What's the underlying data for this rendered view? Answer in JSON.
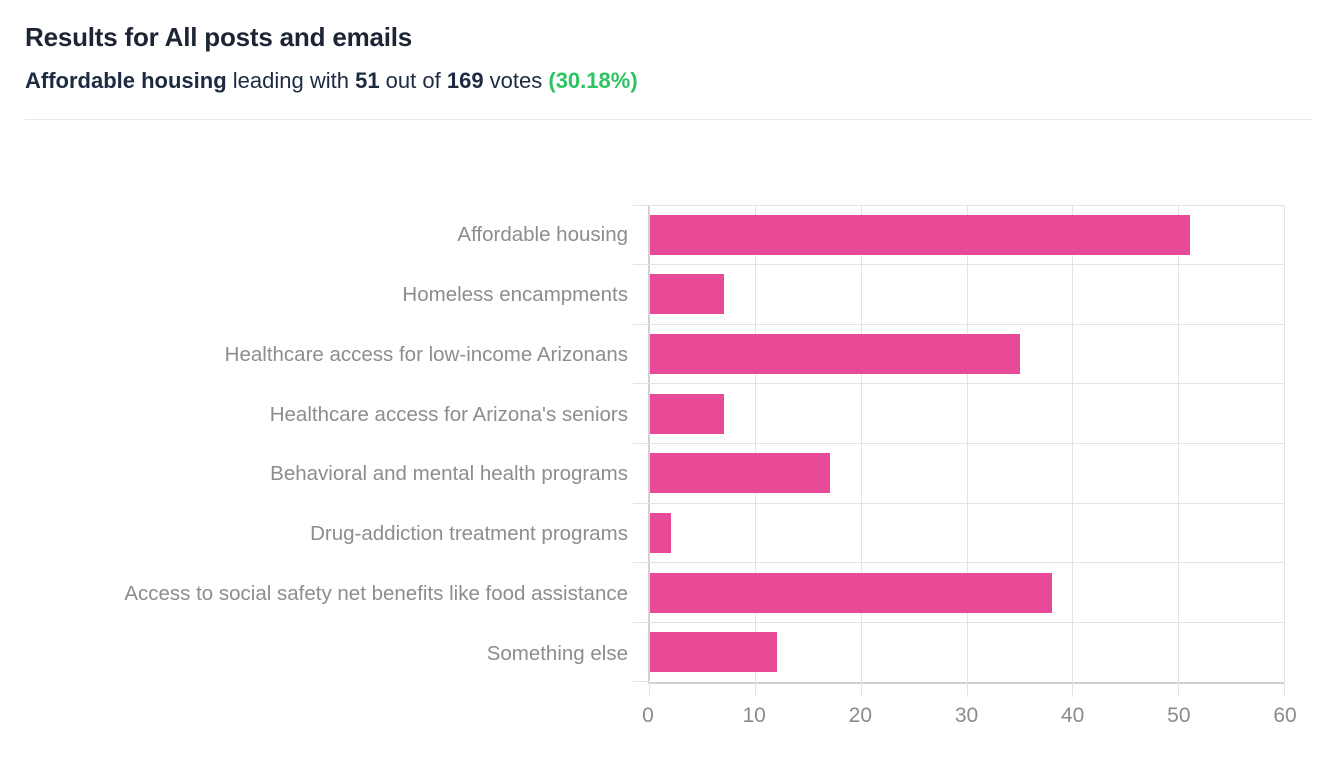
{
  "colors": {
    "bar_pink": "#e94a98",
    "percent_green": "#2cc561",
    "title_dark": "#1d2534",
    "subtitle_dark": "#1d2b42",
    "label_gray": "#8d8d8d",
    "grid_gray": "#e3e3e3",
    "axis_gray": "#d2d2d2"
  },
  "header": {
    "title": "Results for All posts and emails",
    "summary_parts": [
      {
        "text": "Affordable housing",
        "style": "bold"
      },
      {
        "text": " leading with ",
        "style": "normal"
      },
      {
        "text": "51",
        "style": "bold"
      },
      {
        "text": " out of ",
        "style": "normal"
      },
      {
        "text": "169",
        "style": "bold"
      },
      {
        "text": " votes ",
        "style": "normal"
      },
      {
        "text": "(30.18%)",
        "style": "green"
      }
    ]
  },
  "chart_data": {
    "type": "bar",
    "orientation": "horizontal",
    "title": "",
    "categories": [
      "Affordable housing",
      "Homeless encampments",
      "Healthcare access for low-income Arizonans",
      "Healthcare access for Arizona's seniors",
      "Behavioral and mental health programs",
      "Drug-addiction treatment programs",
      "Access to social safety net benefits like food assistance",
      "Something else"
    ],
    "values": [
      51,
      7,
      35,
      7,
      17,
      2,
      38,
      12
    ],
    "total_votes": 169,
    "leading_category": "Affordable housing",
    "leading_votes": 51,
    "leading_percent": "30.18%",
    "xlabel": "",
    "ylabel": "",
    "xlim": [
      0,
      60
    ],
    "x_ticks": [
      0,
      10,
      20,
      30,
      40,
      50,
      60
    ],
    "grid": true,
    "legend": false,
    "bar_color": "#e94a98"
  }
}
